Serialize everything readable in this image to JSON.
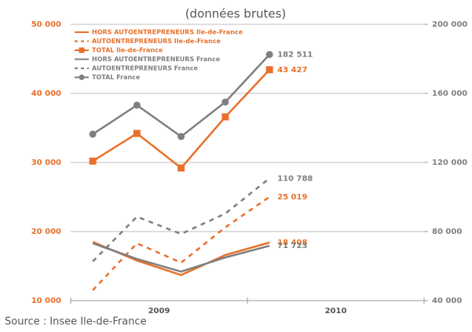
{
  "chart_data": {
    "type": "line",
    "subtitle": "(données brutes)",
    "source": "Source : Insee Ile-de-France",
    "categories": [
      null,
      null,
      null,
      null,
      null
    ],
    "x_group_labels": [
      "2009",
      "2010"
    ],
    "ylim": [
      10000,
      50000
    ],
    "yticks": [
      {
        "value": 10000,
        "label": "10 000"
      },
      {
        "value": 20000,
        "label": "20 000"
      },
      {
        "value": 30000,
        "label": "30 000"
      },
      {
        "value": 40000,
        "label": "40 000"
      },
      {
        "value": 50000,
        "label": "50 000"
      }
    ],
    "y2lim": [
      40000,
      200000
    ],
    "y2ticks": [
      {
        "value": 40000,
        "label": "40 000"
      },
      {
        "value": 80000,
        "label": "80 000"
      },
      {
        "value": 120000,
        "label": "120 000"
      },
      {
        "value": 160000,
        "label": "160 000"
      },
      {
        "value": 200000,
        "label": "200 000"
      }
    ],
    "grid": true,
    "legend": "top-left",
    "series": [
      {
        "name": "HORS AUTOENTREPRENEURS Ile-de-France",
        "color": "#e8702a",
        "dash": false,
        "marker": null,
        "values": [
          18500,
          15800,
          13700,
          16600,
          18408
        ],
        "value_labels": [
          null,
          null,
          null,
          null,
          "18 408"
        ]
      },
      {
        "name": "AUTOENTREPRENEURS Ile-de-France",
        "color": "#e8702a",
        "dash": true,
        "marker": null,
        "values": [
          11500,
          18300,
          15500,
          20600,
          25019
        ],
        "value_labels": [
          null,
          null,
          null,
          null,
          "25 019"
        ]
      },
      {
        "name": "TOTAL Ile-de-France",
        "color": "#e8702a",
        "dash": false,
        "marker": "square",
        "values": [
          30200,
          34200,
          29200,
          36600,
          43427
        ],
        "value_labels": [
          null,
          null,
          null,
          null,
          "43 427"
        ]
      },
      {
        "name": "HORS AUTOENTREPRENEURS France",
        "color": "#7f7f7f",
        "dash": false,
        "marker": null,
        "axis": "y2",
        "values": [
          73200,
          64100,
          56800,
          65000,
          71723
        ],
        "value_labels": [
          null,
          null,
          null,
          null,
          "71 723"
        ]
      },
      {
        "name": "AUTOENTREPRENEURS France",
        "color": "#7f7f7f",
        "dash": true,
        "marker": null,
        "axis": "y2",
        "values": [
          62700,
          88600,
          78600,
          90400,
          110788
        ],
        "value_labels": [
          null,
          null,
          null,
          null,
          "110 788"
        ]
      },
      {
        "name": "TOTAL France",
        "color": "#7f7f7f",
        "dash": false,
        "marker": "circle",
        "axis": "y2",
        "values": [
          136400,
          153200,
          135000,
          155000,
          182511
        ],
        "value_labels": [
          null,
          null,
          null,
          null,
          "182 511"
        ]
      }
    ]
  }
}
